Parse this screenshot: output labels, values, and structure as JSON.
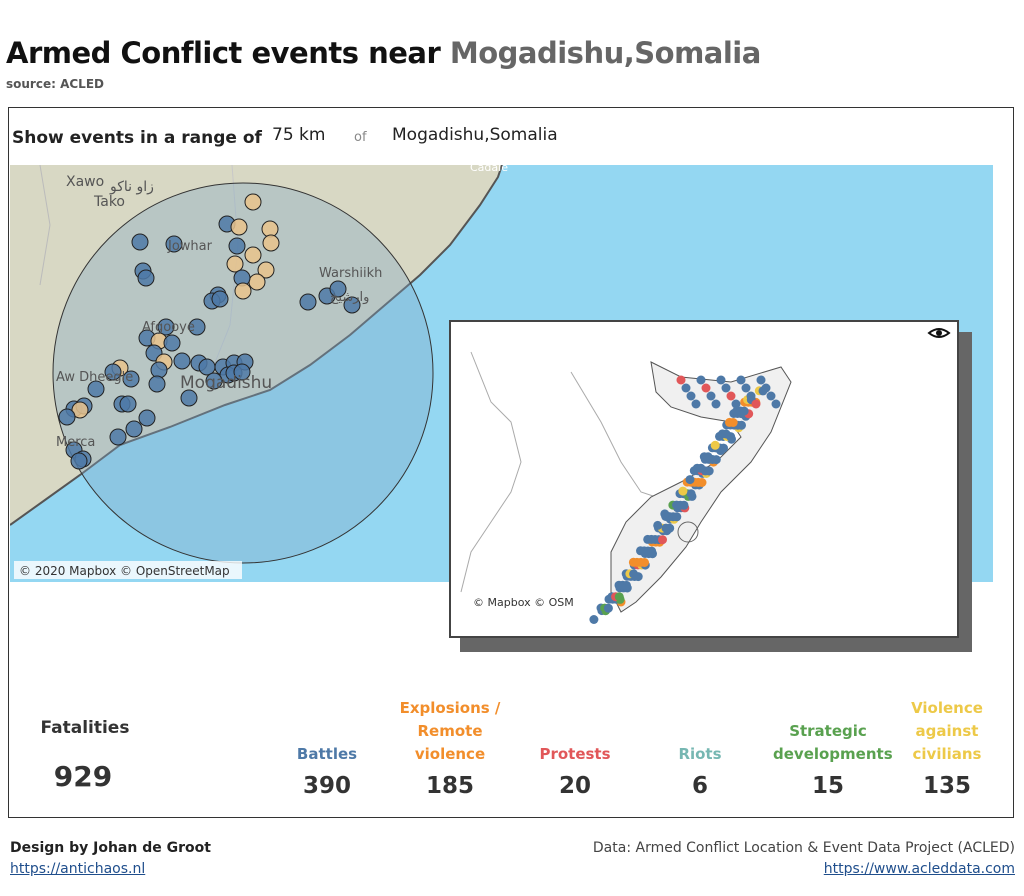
{
  "header": {
    "title": "Armed Conflict events near ",
    "title_place": "Mogadishu,Somalia",
    "source": "source: ACLED"
  },
  "filter": {
    "label": "Show events in a range of",
    "range": "75 km",
    "of": "of",
    "place": "Mogadishu,Somalia"
  },
  "map": {
    "labels": [
      "Xawo",
      "زاو ناكو",
      "Tako",
      "Jowhar",
      "Warshiikh",
      "وارشيخ",
      "Afgooye",
      "Aw Dheegle",
      "Mogadishu",
      "Merca",
      "Cadale"
    ],
    "attribution": "© 2020 Mapbox © OpenStreetMap"
  },
  "inset": {
    "attribution": "© Mapbox © OSM"
  },
  "stats": {
    "fatalities": {
      "label": "Fatalities",
      "value": 929
    },
    "categories": [
      {
        "name": "Battles",
        "value": 390,
        "color": "#4e79a7"
      },
      {
        "name": "Explosions / Remote violence",
        "value": 185,
        "color": "#f28e2b"
      },
      {
        "name": "Protests",
        "value": 20,
        "color": "#e15759"
      },
      {
        "name": "Riots",
        "value": 6,
        "color": "#76b7b2"
      },
      {
        "name": "Strategic developments",
        "value": 15,
        "color": "#59a14f"
      },
      {
        "name": "Violence against civilians",
        "value": 135,
        "color": "#edc948"
      }
    ]
  },
  "footer": {
    "design": "Design by Johan de Groot",
    "design_url": "https://antichaos.nl",
    "data": "Data: Armed Conflict Location & Event Data Project (ACLED)",
    "data_url": "https://www.acleddata.com"
  }
}
